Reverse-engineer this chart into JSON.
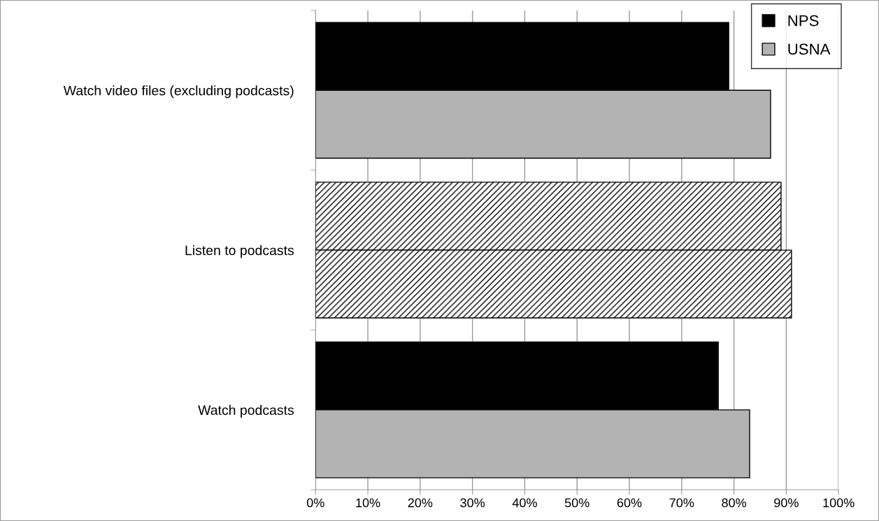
{
  "chart_data": {
    "type": "bar",
    "orientation": "horizontal",
    "categories": [
      "Watch video files (excluding podcasts)",
      "Listen to podcasts",
      "Watch podcasts"
    ],
    "series": [
      {
        "name": "NPS",
        "color": "#000000",
        "colors": [
          "#000000",
          "#000000",
          "#000000"
        ],
        "values": [
          79,
          89,
          77
        ]
      },
      {
        "name": "USNA",
        "color": "#b3b3b3",
        "colors": [
          "#b3b3b3",
          "#000000",
          "#b3b3b3"
        ],
        "values": [
          87,
          91,
          83
        ]
      }
    ],
    "xlim": [
      0,
      100
    ],
    "xticks": [
      {
        "value": 0,
        "label": "0%"
      },
      {
        "value": 10,
        "label": "10%"
      },
      {
        "value": 20,
        "label": "20%"
      },
      {
        "value": 30,
        "label": "30%"
      },
      {
        "value": 40,
        "label": "40%"
      },
      {
        "value": 50,
        "label": "50%"
      },
      {
        "value": 60,
        "label": "60%"
      },
      {
        "value": 70,
        "label": "70%"
      },
      {
        "value": 80,
        "label": "80%"
      },
      {
        "value": 90,
        "label": "90%"
      },
      {
        "value": 100,
        "label": "100%"
      }
    ],
    "grid": "x",
    "legend": "top right"
  }
}
